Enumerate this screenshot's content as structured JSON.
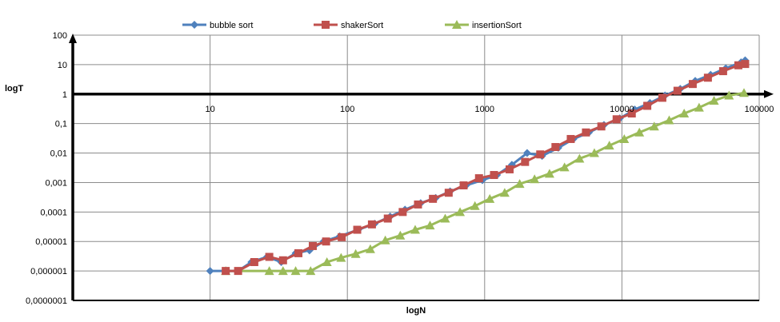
{
  "chart_data": {
    "type": "line",
    "title": "",
    "xlabel": "logN",
    "ylabel": "logT",
    "x_scale": "log",
    "y_scale": "log",
    "xlim": [
      1,
      100000
    ],
    "ylim": [
      1e-07,
      100
    ],
    "grid": true,
    "legend_position": "top",
    "x_tick_labels": [
      "10",
      "100",
      "1000",
      "10000",
      "100000"
    ],
    "y_tick_labels": [
      "100",
      "10",
      "1",
      "0,1",
      "0,01",
      "0,001",
      "0,0001",
      "0,00001",
      "0,000001",
      "0,0000001"
    ],
    "series": [
      {
        "name": "bubble sort",
        "color": "#4F81BD",
        "marker": "diamond",
        "x": [
          10,
          13,
          16,
          20,
          26,
          33,
          42,
          53,
          67,
          88,
          120,
          158,
          205,
          263,
          342,
          440,
          560,
          733,
          963,
          1230,
          1580,
          2040,
          2620,
          3440,
          4430,
          5750,
          7400,
          9650,
          12400,
          16000,
          20600,
          26600,
          34200,
          44300,
          57100,
          73800,
          79000
        ],
        "y": [
          1e-06,
          1e-06,
          1e-06,
          2e-06,
          3e-06,
          2e-06,
          4e-06,
          5e-06,
          1e-05,
          1.5e-05,
          2.5e-05,
          4e-05,
          7e-05,
          0.00012,
          0.0002,
          0.0003,
          0.0005,
          0.0008,
          0.0012,
          0.0018,
          0.004,
          0.01,
          0.008,
          0.015,
          0.03,
          0.05,
          0.09,
          0.15,
          0.3,
          0.5,
          0.9,
          1.5,
          2.8,
          4.5,
          7.5,
          12,
          14
        ]
      },
      {
        "name": "shakerSort",
        "color": "#C0504D",
        "marker": "square",
        "x": [
          13,
          16,
          21,
          27,
          34,
          44,
          56,
          70,
          91,
          118,
          151,
          197,
          253,
          327,
          420,
          547,
          703,
          910,
          1170,
          1520,
          1970,
          2540,
          3280,
          4240,
          5470,
          7080,
          9150,
          11800,
          15300,
          19700,
          25400,
          32800,
          42300,
          54600,
          70500,
          79000
        ],
        "y": [
          1e-06,
          1e-06,
          2e-06,
          3e-06,
          2.3e-06,
          4e-06,
          7e-06,
          1e-05,
          1.4e-05,
          2.5e-05,
          3.8e-05,
          6e-05,
          0.0001,
          0.00018,
          0.00028,
          0.00045,
          0.0008,
          0.0014,
          0.0018,
          0.0028,
          0.005,
          0.009,
          0.016,
          0.03,
          0.05,
          0.08,
          0.14,
          0.22,
          0.4,
          0.75,
          1.3,
          2.2,
          3.6,
          6,
          9.5,
          10.5
        ]
      },
      {
        "name": "insertionSort",
        "color": "#9BBB59",
        "marker": "triangle",
        "x": [
          13,
          27,
          34,
          42,
          54,
          71,
          90,
          115,
          147,
          189,
          243,
          312,
          400,
          516,
          662,
          850,
          1090,
          1400,
          1800,
          2310,
          2970,
          3820,
          4910,
          6300,
          8100,
          10400,
          13400,
          17200,
          22100,
          28400,
          36500,
          46900,
          60300,
          77500
        ],
        "y": [
          1e-06,
          1e-06,
          1e-06,
          1e-06,
          1e-06,
          2e-06,
          2.8e-06,
          3.8e-06,
          5.5e-06,
          1.1e-05,
          1.6e-05,
          2.5e-05,
          3.5e-05,
          6e-05,
          0.0001,
          0.00016,
          0.00028,
          0.00045,
          0.0009,
          0.0013,
          0.002,
          0.0033,
          0.0065,
          0.01,
          0.018,
          0.03,
          0.05,
          0.08,
          0.13,
          0.22,
          0.35,
          0.6,
          0.9,
          1.1
        ]
      }
    ]
  }
}
